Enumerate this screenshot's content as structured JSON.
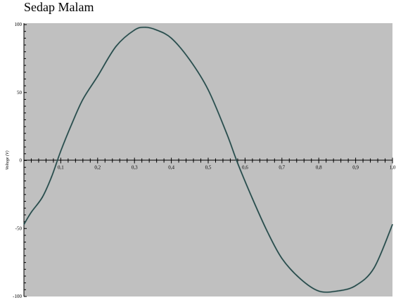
{
  "chart_data": {
    "type": "line",
    "title": "Sedap Malam",
    "xlabel": "",
    "ylabel": "Voltage (V)",
    "xlim": [
      0,
      1.0
    ],
    "ylim": [
      -100,
      100
    ],
    "x_tick_labels": [
      "0,1",
      "0,2",
      "0,3",
      "0,4",
      "0,5",
      "0,6",
      "0,7",
      "0,8",
      "0,9",
      "1,0"
    ],
    "y_tick_labels": [
      "100",
      "50",
      "0",
      "-50",
      "-100"
    ],
    "y_tick_values": [
      100,
      50,
      0,
      -50,
      -100
    ],
    "x_tick_values": [
      0.1,
      0.2,
      0.3,
      0.4,
      0.5,
      0.6,
      0.7,
      0.8,
      0.9,
      1.0
    ],
    "grid": false,
    "background": "#c0c0c0",
    "series": [
      {
        "color": "#1f3f3f",
        "x": [
          0.0,
          0.02,
          0.05,
          0.075,
          0.1,
          0.13,
          0.16,
          0.2,
          0.25,
          0.3,
          0.33,
          0.36,
          0.4,
          0.45,
          0.5,
          0.55,
          0.58,
          0.62,
          0.66,
          0.7,
          0.75,
          0.8,
          0.85,
          0.9,
          0.95,
          1.0
        ],
        "y": [
          -47,
          -38,
          -27,
          -12,
          7,
          27,
          45,
          62,
          84,
          96,
          98,
          96,
          90,
          74,
          52,
          20,
          -2,
          -28,
          -52,
          -72,
          -87,
          -96,
          -96,
          -92,
          -79,
          -47
        ]
      }
    ]
  }
}
